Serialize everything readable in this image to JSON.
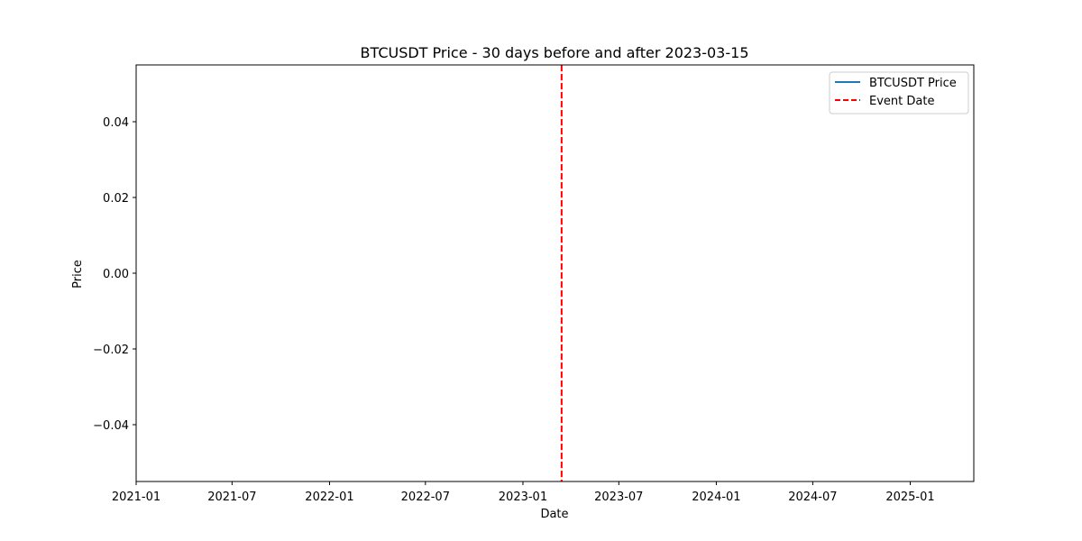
{
  "chart_data": {
    "type": "line",
    "title": "BTCUSDT Price - 30 days before and after 2023-03-15",
    "xlabel": "Date",
    "ylabel": "Price",
    "x_axis_type": "date",
    "xlim": [
      "2021-01-01",
      "2025-05-01"
    ],
    "ylim": [
      -0.055,
      0.055
    ],
    "x_ticks": [
      "2021-01",
      "2021-07",
      "2022-01",
      "2022-07",
      "2023-01",
      "2023-07",
      "2024-01",
      "2024-07",
      "2025-01"
    ],
    "y_ticks": [
      {
        "value": 0.04,
        "label": "0.04"
      },
      {
        "value": 0.02,
        "label": "0.02"
      },
      {
        "value": 0.0,
        "label": "0.00"
      },
      {
        "value": -0.02,
        "label": "−0.02"
      },
      {
        "value": -0.04,
        "label": "−0.04"
      }
    ],
    "grid": false,
    "series": [
      {
        "name": "BTCUSDT Price",
        "color": "#1f77b4",
        "style": "solid",
        "x": [],
        "y": []
      }
    ],
    "event_line": {
      "name": "Event Date",
      "x": "2023-03-15",
      "color": "#ff0000",
      "style": "dashed"
    },
    "legend": {
      "placement": "upper-right",
      "entries": [
        {
          "label": "BTCUSDT Price",
          "color": "#1f77b4",
          "style": "solid"
        },
        {
          "label": "Event Date",
          "color": "#ff0000",
          "style": "dashed"
        }
      ]
    }
  }
}
